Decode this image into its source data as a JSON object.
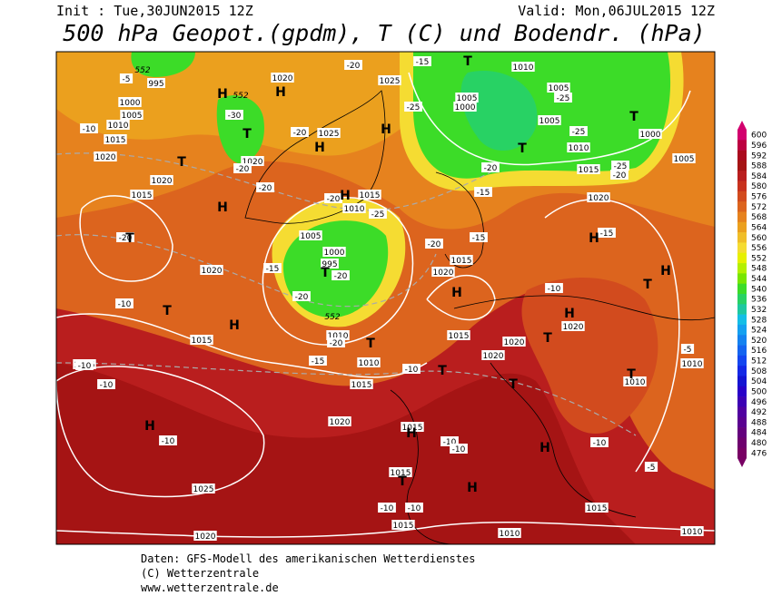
{
  "header": {
    "init": "Init : Tue,30JUN2015 12Z",
    "valid": "Valid: Mon,06JUL2015 12Z",
    "title": "500 hPa Geopot.(gpdm), T (C) und Bodendr. (hPa)"
  },
  "colorbar": {
    "levels": [
      {
        "value": 600,
        "color": "#d2006e"
      },
      {
        "value": 596,
        "color": "#bc0040"
      },
      {
        "value": 592,
        "color": "#aa0a1e"
      },
      {
        "value": 588,
        "color": "#a51414"
      },
      {
        "value": 584,
        "color": "#b91e1e"
      },
      {
        "value": 580,
        "color": "#c8321e"
      },
      {
        "value": 576,
        "color": "#d24b1e"
      },
      {
        "value": 572,
        "color": "#dc641e"
      },
      {
        "value": 568,
        "color": "#e6821e"
      },
      {
        "value": 564,
        "color": "#eba01e"
      },
      {
        "value": 560,
        "color": "#f0be28"
      },
      {
        "value": 556,
        "color": "#f5dc32"
      },
      {
        "value": 552,
        "color": "#e6f000"
      },
      {
        "value": 548,
        "color": "#b4f000"
      },
      {
        "value": 544,
        "color": "#78e600"
      },
      {
        "value": 540,
        "color": "#3cdc28"
      },
      {
        "value": 536,
        "color": "#28d264"
      },
      {
        "value": 532,
        "color": "#1ec8a0"
      },
      {
        "value": 528,
        "color": "#14bee6"
      },
      {
        "value": 524,
        "color": "#14a0f0"
      },
      {
        "value": 520,
        "color": "#1482f0"
      },
      {
        "value": 516,
        "color": "#1464f0"
      },
      {
        "value": 512,
        "color": "#1446f0"
      },
      {
        "value": 508,
        "color": "#1428e6"
      },
      {
        "value": 504,
        "color": "#1414d2"
      },
      {
        "value": 500,
        "color": "#2800c8"
      },
      {
        "value": 496,
        "color": "#3c00b4"
      },
      {
        "value": 492,
        "color": "#5000a0"
      },
      {
        "value": 488,
        "color": "#5a0090"
      },
      {
        "value": 484,
        "color": "#64007d"
      },
      {
        "value": 480,
        "color": "#6e006e"
      },
      {
        "value": 476,
        "color": "#780064"
      }
    ]
  },
  "map": {
    "pressure_labels": [
      "995",
      "1000",
      "1005",
      "1010",
      "1015",
      "1020",
      "1015",
      "1020",
      "1020",
      "1025",
      "1025",
      "1020",
      "1015",
      "1010",
      "1005",
      "1000",
      "995",
      "1020",
      "1015",
      "1025",
      "1010",
      "1010",
      "1015",
      "1020",
      "1015",
      "1015",
      "1015",
      "1010",
      "1025",
      "1020",
      "1015",
      "1020",
      "1020",
      "1020",
      "1015",
      "1020",
      "1010",
      "1010",
      "1015",
      "1010",
      "1000",
      "1005",
      "1010",
      "1005",
      "1005",
      "1010",
      "1000",
      "1005",
      "1015",
      "1020"
    ],
    "temperature_labels": [
      "-20",
      "-15",
      "-25",
      "-20",
      "-20",
      "-15",
      "-20",
      "-10",
      "-10",
      "-10",
      "-10",
      "-10",
      "-10",
      "-10",
      "-10",
      "-10",
      "-10",
      "-10",
      "-10",
      "-5",
      "-5",
      "-15",
      "-15",
      "-20",
      "-15",
      "-20",
      "-25",
      "-25",
      "-25",
      "-20",
      "-25",
      "-20",
      "-20",
      "-20",
      "-20",
      "-30",
      "-20",
      "-15",
      "-5"
    ],
    "contour_labels": [
      "552",
      "552",
      "552"
    ],
    "centers": [
      "H",
      "H",
      "H",
      "H",
      "H",
      "H",
      "H",
      "H",
      "H",
      "H",
      "H",
      "H",
      "H",
      "H",
      "H",
      "T",
      "T",
      "T",
      "T",
      "T",
      "T",
      "T",
      "T",
      "T",
      "T",
      "T",
      "T",
      "T",
      "T",
      "T"
    ]
  },
  "footer": [
    "Daten: GFS-Modell des amerikanischen Wetterdienstes",
    "(C) Wetterzentrale",
    "www.wetterzentrale.de"
  ]
}
